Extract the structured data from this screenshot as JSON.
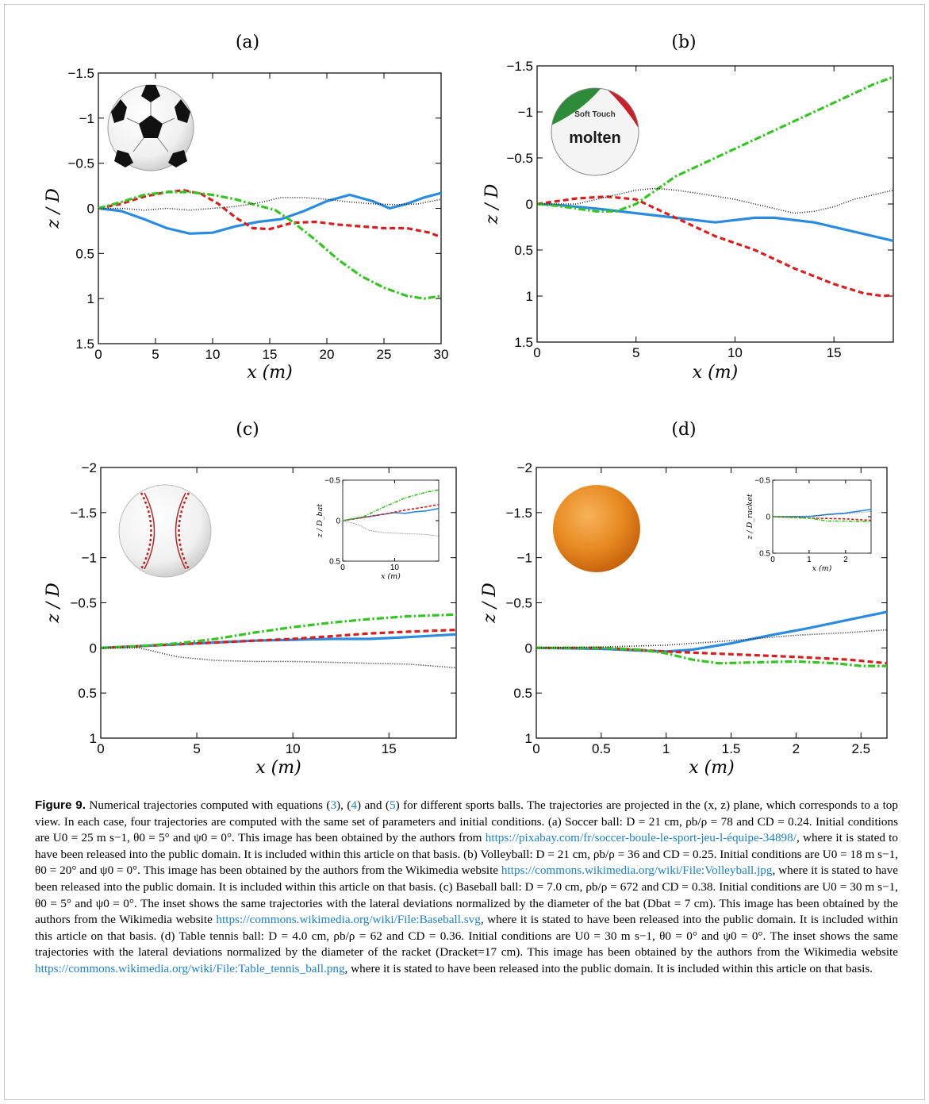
{
  "colors": {
    "blue": "#2a8be0",
    "red": "#d42020",
    "green": "#36c424",
    "black": "#222222",
    "link": "#1f7fc4"
  },
  "chart_data": [
    {
      "panel": "(a)",
      "type": "line",
      "image": "soccer-ball",
      "xlabel": "x (m)",
      "ylabel": "z / D",
      "xlim": [
        0,
        30
      ],
      "ylim": [
        1.5,
        -1.5
      ],
      "y_inverted": true,
      "xticks": [
        "0",
        "5",
        "10",
        "15",
        "20",
        "25",
        "30"
      ],
      "yticks": [
        "−1.5",
        "−1",
        "−0.5",
        "0",
        "0.5",
        "1",
        "1.5"
      ],
      "series": [
        {
          "style": "solid-blue",
          "x": [
            0,
            2,
            4,
            6,
            8,
            10,
            12,
            14,
            16,
            18,
            20,
            22,
            24,
            25.5,
            27,
            28.5,
            30
          ],
          "y": [
            0,
            0.03,
            0.12,
            0.22,
            0.28,
            0.27,
            0.2,
            0.15,
            0.12,
            0.03,
            -0.08,
            -0.15,
            -0.08,
            0,
            -0.05,
            -0.12,
            -0.17
          ]
        },
        {
          "style": "dashed-red",
          "x": [
            0,
            2,
            4,
            6,
            7.5,
            9,
            10.5,
            12,
            13.5,
            15,
            17,
            19,
            21,
            23,
            25,
            27,
            29,
            30
          ],
          "y": [
            0,
            -0.05,
            -0.13,
            -0.18,
            -0.2,
            -0.16,
            -0.05,
            0.1,
            0.22,
            0.23,
            0.16,
            0.15,
            0.18,
            0.2,
            0.22,
            0.22,
            0.27,
            0.32
          ]
        },
        {
          "style": "dashdot-green",
          "x": [
            0,
            2,
            4,
            6,
            8,
            10,
            12,
            14,
            15.5,
            17,
            19,
            21,
            23,
            25,
            27,
            28.5,
            30
          ],
          "y": [
            0,
            -0.07,
            -0.15,
            -0.18,
            -0.18,
            -0.15,
            -0.1,
            -0.03,
            0.02,
            0.15,
            0.35,
            0.57,
            0.75,
            0.88,
            0.97,
            1.0,
            0.97
          ]
        },
        {
          "style": "dotted-black",
          "x": [
            0,
            2,
            4,
            6,
            8,
            10,
            12,
            14,
            16,
            18,
            20,
            22,
            24,
            26,
            28,
            30
          ],
          "y": [
            0,
            0,
            0.02,
            0,
            0.02,
            0,
            -0.02,
            -0.06,
            -0.12,
            -0.12,
            -0.1,
            -0.07,
            -0.05,
            -0.04,
            -0.05,
            -0.1
          ]
        }
      ]
    },
    {
      "panel": "(b)",
      "type": "line",
      "image": "volleyball",
      "xlabel": "x (m)",
      "ylabel": "z / D",
      "xlim": [
        0,
        18
      ],
      "ylim": [
        1.5,
        -1.5
      ],
      "y_inverted": true,
      "xticks": [
        "0",
        "5",
        "10",
        "15"
      ],
      "yticks": [
        "−1.5",
        "−1",
        "−0.5",
        "0",
        "0.5",
        "1",
        "1.5"
      ],
      "series": [
        {
          "style": "solid-blue",
          "x": [
            0,
            1,
            3,
            5,
            7,
            9,
            11,
            12,
            14,
            16,
            18
          ],
          "y": [
            0,
            0.01,
            0.05,
            0.1,
            0.15,
            0.2,
            0.15,
            0.15,
            0.2,
            0.3,
            0.4
          ]
        },
        {
          "style": "dashed-red",
          "x": [
            0,
            1,
            2,
            3.5,
            5,
            6,
            7.5,
            9,
            11,
            13,
            15,
            16.5,
            17.5,
            18
          ],
          "y": [
            0,
            -0.03,
            -0.06,
            -0.08,
            -0.05,
            0.05,
            0.2,
            0.35,
            0.5,
            0.7,
            0.87,
            0.97,
            1.0,
            0.99
          ]
        },
        {
          "style": "dashdot-green",
          "x": [
            0,
            1,
            2,
            3,
            4,
            5,
            6,
            7,
            9,
            11,
            13,
            15,
            17,
            18
          ],
          "y": [
            0,
            0.02,
            0.05,
            0.08,
            0.08,
            0,
            -0.15,
            -0.3,
            -0.5,
            -0.7,
            -0.9,
            -1.1,
            -1.3,
            -1.38
          ]
        },
        {
          "style": "dotted-black",
          "x": [
            0,
            2,
            4,
            5,
            6,
            7,
            8,
            10,
            12,
            13,
            14,
            15,
            16,
            17,
            18
          ],
          "y": [
            0,
            0,
            -0.1,
            -0.15,
            -0.17,
            -0.15,
            -0.12,
            -0.05,
            0.05,
            0.1,
            0.08,
            0.03,
            -0.05,
            -0.1,
            -0.15
          ]
        }
      ]
    },
    {
      "panel": "(c)",
      "type": "line",
      "image": "baseball",
      "xlabel": "x (m)",
      "ylabel": "z / D",
      "xlim": [
        0,
        18.5
      ],
      "ylim": [
        1,
        -2
      ],
      "y_inverted": true,
      "xticks": [
        "0",
        "5",
        "10",
        "15"
      ],
      "yticks": [
        "−2",
        "−1.5",
        "−1",
        "−0.5",
        "0",
        "0.5",
        "1"
      ],
      "series": [
        {
          "style": "solid-blue",
          "x": [
            0,
            2,
            4,
            6,
            8,
            10,
            12,
            14,
            16,
            18.5
          ],
          "y": [
            0,
            -0.02,
            -0.04,
            -0.06,
            -0.08,
            -0.09,
            -0.1,
            -0.1,
            -0.12,
            -0.15
          ]
        },
        {
          "style": "dashed-red",
          "x": [
            0,
            2,
            4,
            6,
            8,
            10,
            12,
            14,
            16,
            18.5
          ],
          "y": [
            0,
            -0.02,
            -0.04,
            -0.06,
            -0.08,
            -0.1,
            -0.13,
            -0.16,
            -0.18,
            -0.2
          ]
        },
        {
          "style": "dashdot-green",
          "x": [
            0,
            2,
            4,
            6,
            8,
            10,
            12,
            14,
            16,
            18.5
          ],
          "y": [
            0,
            -0.02,
            -0.05,
            -0.1,
            -0.17,
            -0.23,
            -0.28,
            -0.32,
            -0.35,
            -0.37
          ]
        },
        {
          "style": "dotted-black",
          "x": [
            0,
            2,
            3,
            4,
            5,
            6,
            8,
            10,
            12,
            14,
            16,
            18.5
          ],
          "y": [
            0,
            0,
            0.05,
            0.1,
            0.12,
            0.14,
            0.15,
            0.15,
            0.16,
            0.17,
            0.18,
            0.22
          ]
        }
      ],
      "inset": {
        "ylabel": "z / D_bat",
        "xlabel": "x (m)",
        "xlim": [
          0,
          18.5
        ],
        "ylim": [
          0.5,
          -0.5
        ],
        "xticks": [
          "0",
          "10"
        ],
        "yticks": [
          "−0.5",
          "0",
          "0.5"
        ],
        "series": [
          {
            "style": "solid-blue",
            "x": [
              0,
              4,
              8,
              10,
              12,
              14,
              16,
              18.5
            ],
            "y": [
              0,
              -0.04,
              -0.08,
              -0.1,
              -0.09,
              -0.11,
              -0.12,
              -0.15
            ]
          },
          {
            "style": "dashed-red",
            "x": [
              0,
              4,
              8,
              12,
              16,
              18.5
            ],
            "y": [
              0,
              -0.04,
              -0.08,
              -0.13,
              -0.17,
              -0.2
            ]
          },
          {
            "style": "dashdot-green",
            "x": [
              0,
              4,
              8,
              12,
              16,
              18.5
            ],
            "y": [
              0,
              -0.05,
              -0.17,
              -0.28,
              -0.35,
              -0.38
            ]
          },
          {
            "style": "dotted-black",
            "x": [
              0,
              3,
              5,
              8,
              12,
              16,
              18.5
            ],
            "y": [
              0,
              0.05,
              0.12,
              0.15,
              0.16,
              0.17,
              0.19
            ]
          }
        ]
      }
    },
    {
      "panel": "(d)",
      "type": "line",
      "image": "table-tennis-ball",
      "xlabel": "x (m)",
      "ylabel": "z / D",
      "xlim": [
        0,
        2.7
      ],
      "ylim": [
        1,
        -2
      ],
      "y_inverted": true,
      "xticks": [
        "0",
        "0.5",
        "1",
        "1.5",
        "2",
        "2.5"
      ],
      "yticks": [
        "−2",
        "−1.5",
        "−1",
        "−0.5",
        "0",
        "0.5",
        "1"
      ],
      "series": [
        {
          "style": "solid-blue",
          "x": [
            0,
            0.5,
            0.8,
            1.0,
            1.2,
            1.5,
            1.8,
            2.1,
            2.4,
            2.7
          ],
          "y": [
            0,
            0.01,
            0.03,
            0.04,
            0.02,
            -0.05,
            -0.14,
            -0.22,
            -0.31,
            -0.4
          ]
        },
        {
          "style": "dashed-red",
          "x": [
            0,
            0.5,
            1.0,
            1.5,
            2.0,
            2.4,
            2.7
          ],
          "y": [
            0,
            0,
            0.04,
            0.07,
            0.1,
            0.13,
            0.17
          ]
        },
        {
          "style": "dashdot-green",
          "x": [
            0,
            0.5,
            0.8,
            1.0,
            1.2,
            1.4,
            1.7,
            2.0,
            2.3,
            2.5,
            2.7
          ],
          "y": [
            0,
            0,
            0.02,
            0.06,
            0.13,
            0.17,
            0.16,
            0.15,
            0.17,
            0.2,
            0.2
          ]
        },
        {
          "style": "dotted-black",
          "x": [
            0,
            0.5,
            1.0,
            1.5,
            2.0,
            2.4,
            2.7
          ],
          "y": [
            0,
            -0.01,
            -0.03,
            -0.08,
            -0.14,
            -0.17,
            -0.2
          ]
        }
      ],
      "inset": {
        "ylabel": "z / D_racket",
        "xlabel": "x (m)",
        "xlim": [
          0,
          2.7
        ],
        "ylim": [
          0.5,
          -0.5
        ],
        "xticks": [
          "0",
          "1",
          "2"
        ],
        "yticks": [
          "−0.5",
          "0",
          "0.5"
        ],
        "series": [
          {
            "style": "solid-blue",
            "x": [
              0,
              1,
              1.5,
              2,
              2.7
            ],
            "y": [
              0,
              0,
              -0.03,
              -0.05,
              -0.1
            ]
          },
          {
            "style": "dashed-red",
            "x": [
              0,
              1,
              2,
              2.7
            ],
            "y": [
              0,
              0.02,
              0.03,
              0.05
            ]
          },
          {
            "style": "dashdot-green",
            "x": [
              0,
              1,
              1.5,
              2,
              2.7
            ],
            "y": [
              0,
              0.02,
              0.06,
              0.06,
              0.07
            ]
          },
          {
            "style": "dotted-black",
            "x": [
              0,
              1,
              2,
              2.7
            ],
            "y": [
              0,
              -0.01,
              -0.04,
              -0.07
            ]
          }
        ]
      }
    }
  ],
  "caption": {
    "label": "Figure 9.",
    "p1": " Numerical trajectories computed with equations (",
    "ref3": "3",
    "p2": "), (",
    "ref4": "4",
    "p3": ") and (",
    "ref5": "5",
    "p4": ") for different sports balls. The trajectories are projected in the (x, z) plane, which corresponds to a top view. In each case, four trajectories are computed with the same set of parameters and initial conditions. (a) Soccer ball: D = 21 cm, ρb/ρ = 78 and CD = 0.24. Initial conditions are U0 = 25 m s−1, θ0 = 5° and ψ0 = 0°. This image has been obtained by the authors from ",
    "link1": "https://pixabay.com/fr/soccer-boule-le-sport-jeu-l-équipe-34898/",
    "p5": ", where it is stated to have been released into the public domain.    It is included within this article on that basis. (b) Volleyball: D = 21 cm, ρb/ρ = 36 and CD = 0.25. Initial conditions are U0 = 18 m s−1, θ0 = 20° and ψ0 = 0°.  This image has been obtained by the authors from the Wikimedia website ",
    "link2": "https://commons.wikimedia.org/wiki/File:Volleyball.jpg",
    "p6": ", where it is stated to have been released into the public domain. It is included within this article on that basis. (c) Baseball ball: D = 7.0 cm, ρb/ρ = 672 and CD = 0.38. Initial conditions are U0 = 30 m s−1, θ0 = 5° and ψ0 = 0°. The inset shows the same trajectories with the lateral deviations normalized by the diameter of the bat (Dbat = 7 cm). This image has been obtained by the authors from the Wikimedia website ",
    "link3": "https://commons.wikimedia.org/wiki/File:Baseball.svg",
    "p7": ", where it is stated to have been released into the public domain. It is included within this article on that basis. (d) Table tennis ball: D = 4.0 cm, ρb/ρ = 62 and CD = 0.36. Initial conditions are U0 = 30 m s−1, θ0 = 0° and ψ0 = 0°. The inset shows the same trajectories with the lateral deviations normalized by the diameter of the racket (Dracket=17 cm). This image has been obtained by the authors from the Wikimedia website ",
    "link4": "https://commons.wikimedia.org/wiki/File:Table_tennis_ball.png",
    "p8": ", where it is stated to have been released into the public domain. It is included within this article on that basis."
  },
  "volleyball_text": {
    "line1": "Soft Touch",
    "line2": "molten"
  }
}
